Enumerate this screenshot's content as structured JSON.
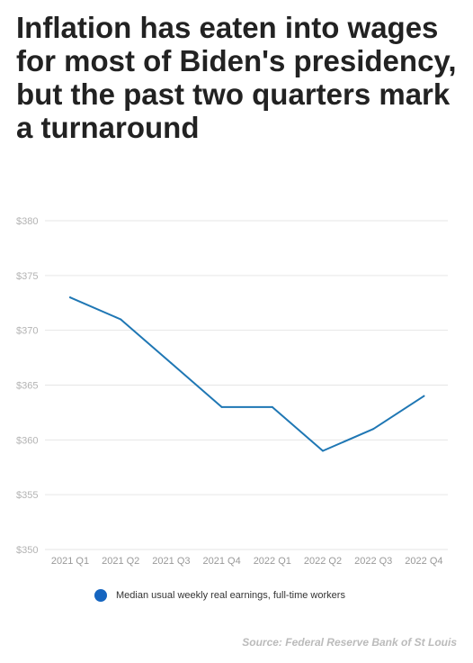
{
  "chart_data": {
    "type": "line",
    "title": "Inflation has eaten into wages for most of Biden's presidency, but the past two quarters mark a turnaround",
    "categories": [
      "2021 Q1",
      "2021 Q2",
      "2021 Q3",
      "2021 Q4",
      "2022 Q1",
      "2022 Q2",
      "2022 Q3",
      "2022 Q4"
    ],
    "series": [
      {
        "name": "Median usual weekly real earnings, full-time workers",
        "values": [
          373,
          371,
          367,
          363,
          363,
          359,
          361,
          364
        ]
      }
    ],
    "ylim": [
      350,
      380
    ],
    "yticks": [
      350,
      355,
      360,
      365,
      370,
      375,
      380
    ],
    "ytick_labels": [
      "$350",
      "$355",
      "$360",
      "$365",
      "$370",
      "$375",
      "$380"
    ],
    "xlabel": "",
    "ylabel": "",
    "grid": true,
    "legend": "bottom",
    "colors": {
      "line": "#1f77b4",
      "legend_dot": "#1565c0",
      "grid": "#e6e6e6"
    }
  },
  "source": "Source: Federal Reserve Bank of St Louis"
}
